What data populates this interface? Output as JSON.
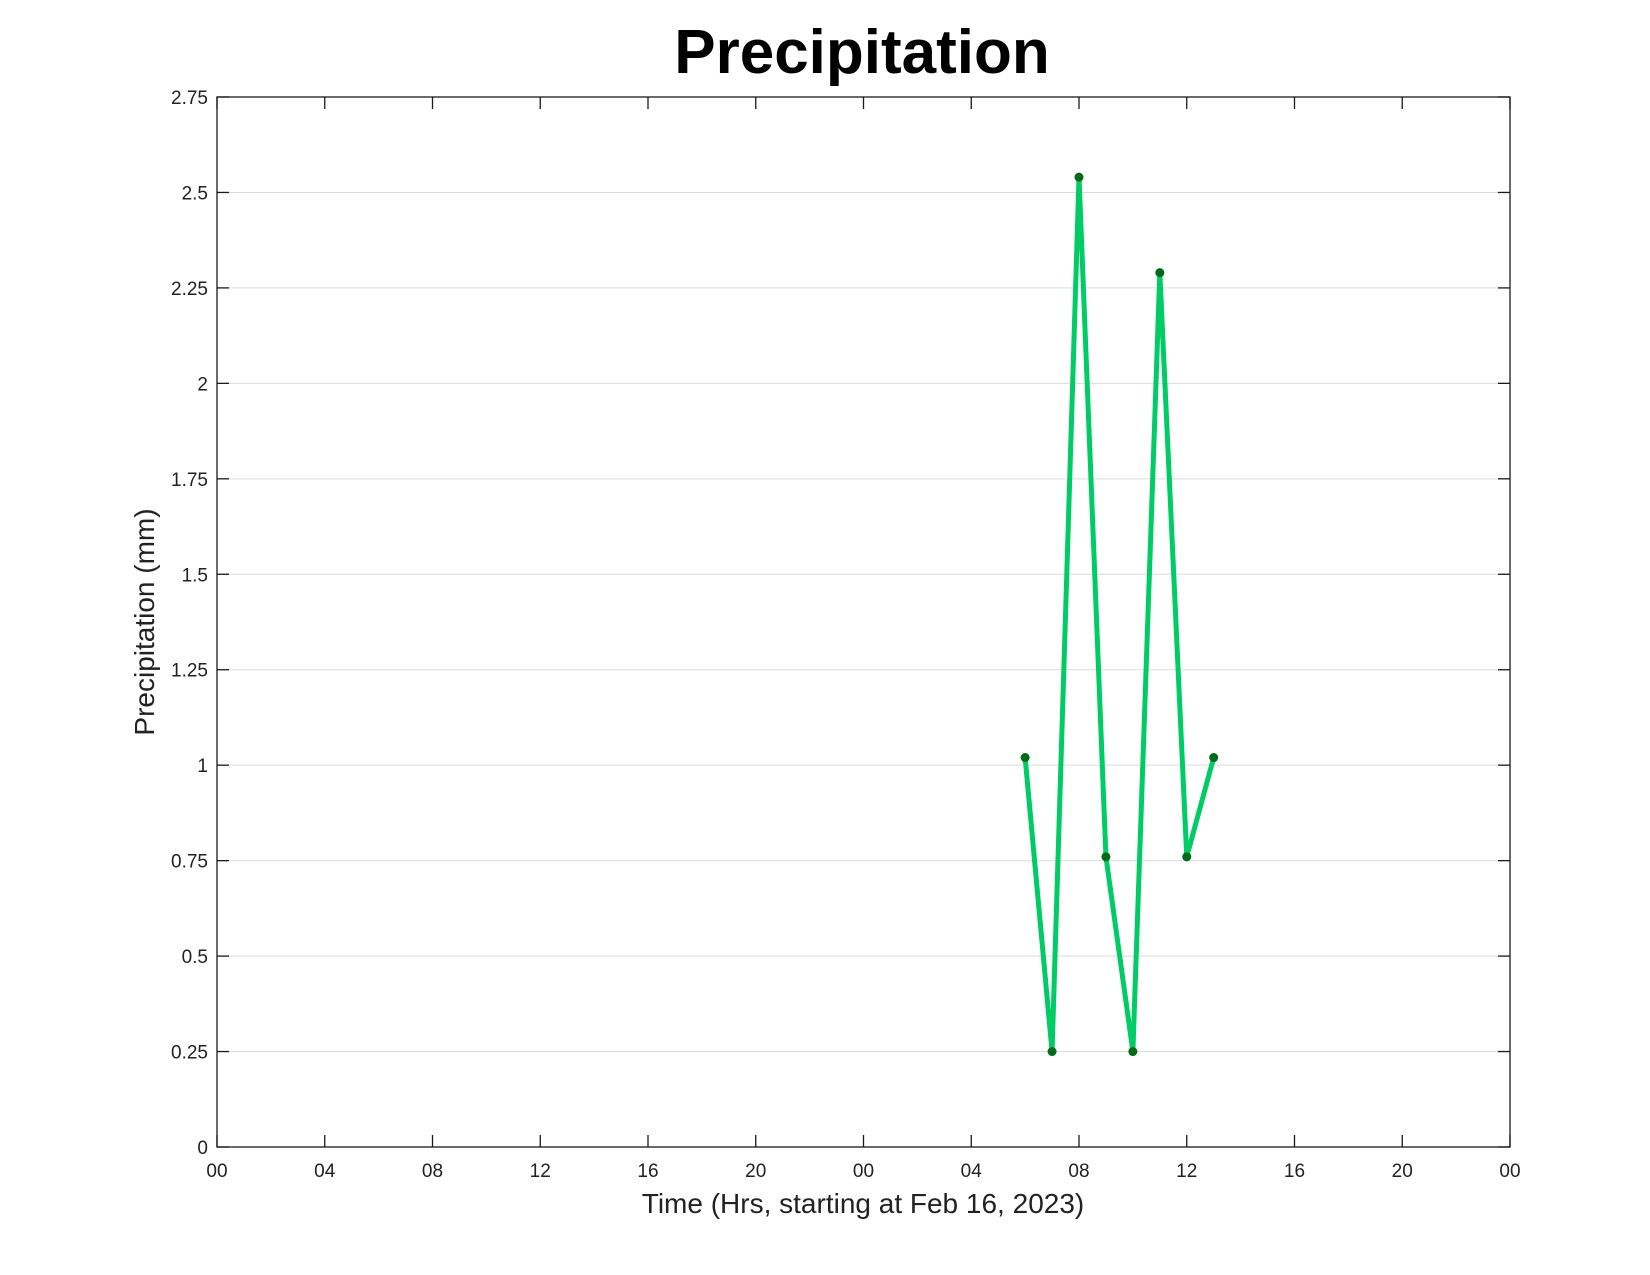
{
  "chart_data": {
    "type": "line",
    "title": "Precipitation",
    "xlabel": "Time (Hrs, starting at Feb 16, 2023)",
    "ylabel": "Precipitation (mm)",
    "xlim": [
      0,
      48
    ],
    "ylim": [
      0,
      2.75
    ],
    "x_ticks": [
      {
        "value": 0,
        "label": "00"
      },
      {
        "value": 4,
        "label": "04"
      },
      {
        "value": 8,
        "label": "08"
      },
      {
        "value": 12,
        "label": "12"
      },
      {
        "value": 16,
        "label": "16"
      },
      {
        "value": 20,
        "label": "20"
      },
      {
        "value": 24,
        "label": "00"
      },
      {
        "value": 28,
        "label": "04"
      },
      {
        "value": 32,
        "label": "08"
      },
      {
        "value": 36,
        "label": "12"
      },
      {
        "value": 40,
        "label": "16"
      },
      {
        "value": 44,
        "label": "20"
      },
      {
        "value": 48,
        "label": "00"
      }
    ],
    "y_ticks": [
      {
        "value": 0,
        "label": "0"
      },
      {
        "value": 0.25,
        "label": "0.25"
      },
      {
        "value": 0.5,
        "label": "0.5"
      },
      {
        "value": 0.75,
        "label": "0.75"
      },
      {
        "value": 1,
        "label": "1"
      },
      {
        "value": 1.25,
        "label": "1.25"
      },
      {
        "value": 1.5,
        "label": "1.5"
      },
      {
        "value": 1.75,
        "label": "1.75"
      },
      {
        "value": 2,
        "label": "2"
      },
      {
        "value": 2.25,
        "label": "2.25"
      },
      {
        "value": 2.5,
        "label": "2.5"
      },
      {
        "value": 2.75,
        "label": "2.75"
      }
    ],
    "grid": "horizontal",
    "series": [
      {
        "line_color": "#00cc66",
        "marker_color": "#006b16",
        "x": [
          30,
          31,
          32,
          33,
          34,
          35,
          36,
          37
        ],
        "y": [
          1.02,
          0.25,
          2.54,
          0.76,
          0.25,
          2.29,
          0.76,
          1.02
        ]
      }
    ]
  }
}
